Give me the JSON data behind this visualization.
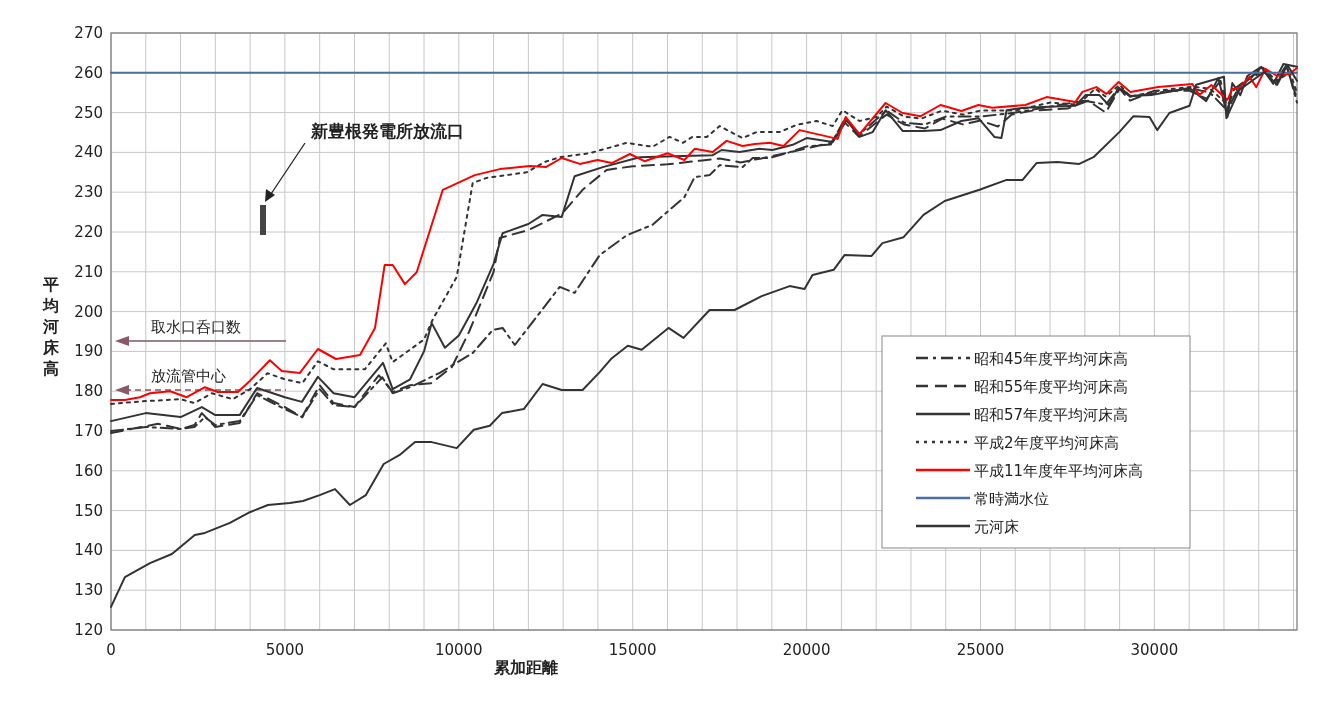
{
  "chart_data": {
    "type": "line",
    "xlabel": "累加距離",
    "ylabel": "平均河床高",
    "xlim": [
      0,
      34100
    ],
    "ylim": [
      120,
      270
    ],
    "xticks": [
      0,
      {
        "value": 1000,
        "label": null
      },
      {
        "value": 2000,
        "label": null
      },
      {
        "value": 3000,
        "label": null
      },
      {
        "value": 4000,
        "label": null
      },
      5000,
      {
        "value": 6000,
        "label": null
      },
      {
        "value": 7000,
        "label": null
      },
      {
        "value": 8000,
        "label": null
      },
      {
        "value": 9000,
        "label": null
      },
      10000,
      {
        "value": 11000,
        "label": null
      },
      {
        "value": 12000,
        "label": null
      },
      {
        "value": 13000,
        "label": null
      },
      {
        "value": 14000,
        "label": null
      },
      15000,
      {
        "value": 16000,
        "label": null
      },
      {
        "value": 17000,
        "label": null
      },
      {
        "value": 18000,
        "label": null
      },
      {
        "value": 19000,
        "label": null
      },
      20000,
      {
        "value": 21000,
        "label": null
      },
      {
        "value": 22000,
        "label": null
      },
      {
        "value": 23000,
        "label": null
      },
      {
        "value": 24000,
        "label": null
      },
      25000,
      {
        "value": 26000,
        "label": null
      },
      {
        "value": 27000,
        "label": null
      },
      {
        "value": 28000,
        "label": null
      },
      {
        "value": 29000,
        "label": null
      },
      30000,
      {
        "value": 31000,
        "label": null
      },
      {
        "value": 32000,
        "label": null
      },
      {
        "value": 33000,
        "label": null
      },
      {
        "value": 34000,
        "label": null
      }
    ],
    "yticks": [
      120,
      130,
      140,
      150,
      160,
      170,
      180,
      190,
      200,
      210,
      220,
      230,
      240,
      250,
      260,
      270
    ],
    "grid": true,
    "legend": "bottom right",
    "marker": "none",
    "series": [
      {
        "name": "昭和45年度平均河床高",
        "color": "#333333",
        "line_style": "dashdot",
        "x": [
          0,
          1000,
          2000,
          2400,
          2700,
          3000,
          3700,
          4200,
          5000,
          5500,
          6000,
          6400,
          7000,
          7800,
          8100,
          8600,
          9450,
          10400,
          10980,
          11260,
          11610,
          11950,
          12900,
          13330,
          14050,
          14830,
          15570,
          16490,
          16780,
          17210,
          17500,
          18160,
          18450,
          18940,
          19500,
          20000,
          20700,
          21100,
          21500,
          22300,
          22800,
          23400,
          24000,
          25000,
          26000,
          27000,
          28000,
          28600,
          29000,
          29300,
          30100,
          31100,
          31600,
          32100,
          32400,
          32800,
          33100,
          33500,
          33800,
          34100
        ],
        "values": [
          170,
          171,
          170.5,
          171,
          173.5,
          171.5,
          172.5,
          179,
          175.5,
          173.5,
          180.5,
          176.5,
          176,
          183.5,
          179.5,
          181,
          184.6,
          189.6,
          195.4,
          195.9,
          191.6,
          195.4,
          206.2,
          204.7,
          214.2,
          219.2,
          221.8,
          228.8,
          233.8,
          234.3,
          236.8,
          236.3,
          238.6,
          238.6,
          240,
          241.5,
          242,
          248.5,
          244.5,
          250.5,
          247.5,
          247,
          249,
          249,
          250,
          251.5,
          253,
          252,
          256.5,
          254,
          255,
          256,
          255,
          250.5,
          256,
          259,
          261.5,
          258,
          262,
          252.5
        ]
      },
      {
        "name": "昭和55年度平均河床高",
        "color": "#333333",
        "line_style": "dashed",
        "x": [
          0,
          1350,
          2000,
          2400,
          2610,
          3000,
          3700,
          4200,
          5000,
          5490,
          6000,
          6400,
          7000,
          7700,
          8100,
          8600,
          9200,
          9800,
          10300,
          11000,
          11180,
          12000,
          12470,
          12990,
          13560,
          14250,
          15000,
          16000,
          17000,
          17500,
          18100,
          18700,
          19500,
          20000,
          20700,
          21100,
          21500,
          22300,
          22800,
          23400,
          23900,
          24500,
          25000,
          25500,
          25900,
          26500,
          27500,
          28100,
          28600,
          29000,
          29300,
          30000,
          31000,
          31500,
          31900,
          32100,
          32300,
          32700,
          33100,
          33500,
          33800,
          34100
        ],
        "values": [
          169.5,
          171.8,
          170.5,
          171.5,
          174.5,
          171,
          172,
          179.5,
          176,
          173.5,
          181.5,
          177,
          176,
          184,
          179.8,
          181.5,
          182,
          186,
          195,
          210,
          218.5,
          220.5,
          222.5,
          224.8,
          230.6,
          235.6,
          236.5,
          237,
          238,
          238.5,
          237.5,
          238.5,
          240,
          241,
          242.4,
          247.5,
          244,
          249.5,
          247,
          246,
          248.5,
          247,
          248,
          246.5,
          249.5,
          250.5,
          251,
          253,
          250,
          256,
          253,
          255.5,
          255.5,
          253.5,
          258,
          251,
          256,
          258.5,
          261,
          257,
          261.5,
          253.5
        ]
      },
      {
        "name": "昭和57年度平均河床高",
        "color": "#333333",
        "line_style": "solid",
        "x": [
          0,
          1000,
          2000,
          2610,
          3000,
          3700,
          4200,
          5000,
          5490,
          5950,
          6400,
          7000,
          7820,
          8100,
          8600,
          9000,
          9220,
          9600,
          10000,
          10500,
          11000,
          11260,
          12000,
          12410,
          12960,
          13330,
          14140,
          15200,
          16440,
          17300,
          17560,
          18070,
          18650,
          19020,
          19600,
          20000,
          20750,
          21150,
          21520,
          21900,
          22270,
          22760,
          23360,
          23850,
          24450,
          24940,
          25400,
          25600,
          25750,
          26240,
          27730,
          28020,
          28420,
          28680,
          28970,
          29310,
          29910,
          31000,
          31490,
          31840,
          32100,
          32240,
          32470,
          32670,
          33070,
          33420,
          33710,
          34100
        ],
        "values": [
          172.5,
          174.5,
          173.5,
          176,
          174,
          174,
          180.8,
          178.5,
          177.3,
          183.6,
          179.5,
          178.5,
          187.1,
          180.5,
          183,
          190,
          197.1,
          190.9,
          194,
          202,
          212,
          219.7,
          222,
          224.3,
          223.8,
          234,
          236.3,
          238.8,
          239.1,
          239.3,
          240.6,
          240.1,
          240.9,
          240.6,
          241.9,
          243.6,
          242.6,
          248.1,
          243.9,
          245.1,
          250.6,
          245.4,
          245.4,
          245.6,
          247.9,
          248.6,
          243.9,
          243.6,
          250.6,
          251.2,
          251.7,
          254.4,
          254.4,
          251.9,
          256.2,
          254.2,
          254.4,
          256.2,
          252.9,
          258.7,
          248.9,
          257.4,
          254.4,
          259.2,
          261.5,
          257.2,
          262.2,
          261.5
        ]
      },
      {
        "name": "平成2年度平均河床高",
        "color": "#333333",
        "line_style": "dotted",
        "x": [
          0,
          1000,
          2000,
          2400,
          2900,
          3500,
          4000,
          4500,
          5000,
          5500,
          5950,
          6400,
          7300,
          7900,
          8100,
          9000,
          9250,
          9940,
          10400,
          10800,
          11950,
          12470,
          12900,
          13760,
          14830,
          15570,
          16060,
          16440,
          16720,
          17130,
          17500,
          17870,
          18160,
          18560,
          19220,
          19710,
          20290,
          20750,
          21030,
          21520,
          22010,
          22300,
          22800,
          23300,
          23900,
          24500,
          25000,
          26000,
          27000,
          27800,
          28300,
          28600,
          29000,
          29300,
          30100,
          31100,
          31600,
          32100,
          32700,
          33200,
          33500,
          33900,
          34100
        ],
        "values": [
          176.8,
          177.5,
          178,
          177,
          179.5,
          178,
          180.5,
          184.5,
          183,
          182,
          187.5,
          185.5,
          185.5,
          192,
          187.3,
          193,
          198,
          208.7,
          232.3,
          233.6,
          235,
          237.6,
          238.8,
          239.8,
          242.4,
          241.4,
          243.9,
          242.4,
          243.9,
          243.9,
          246.6,
          244.9,
          243.6,
          245.1,
          245.1,
          246.9,
          247.9,
          246.6,
          250.6,
          247.9,
          248.9,
          251.5,
          249,
          248.5,
          250.5,
          249.5,
          250.5,
          250.5,
          252.5,
          252,
          256,
          254,
          257,
          254,
          255.5,
          256.5,
          256,
          252,
          258.5,
          260.5,
          258,
          260,
          255
        ]
      },
      {
        "name": "平成11年度年平均河床高",
        "color": "#ff0000",
        "line_style": "solid",
        "x": [
          0,
          400,
          830,
          1120,
          1700,
          2180,
          2700,
          3070,
          3650,
          3990,
          4570,
          4910,
          5430,
          5950,
          6470,
          7160,
          7590,
          7870,
          8100,
          8450,
          8790,
          9540,
          10460,
          11180,
          12040,
          12500,
          12960,
          13480,
          13990,
          14400,
          14920,
          15340,
          16000,
          16490,
          16780,
          17300,
          17700,
          18160,
          18510,
          18940,
          19340,
          19800,
          20890,
          21120,
          21520,
          22270,
          22760,
          23280,
          23850,
          24450,
          24940,
          25340,
          26290,
          26900,
          27730,
          27930,
          28330,
          28620,
          28970,
          29310,
          30110,
          31090,
          31290,
          31640,
          32100,
          32240,
          32440,
          32730,
          32930,
          33190,
          33530,
          33880,
          34100
        ],
        "values": [
          177.8,
          177.8,
          178.5,
          179.5,
          180,
          178.5,
          181,
          179.8,
          179.8,
          182.6,
          187.8,
          185.1,
          184.6,
          190.6,
          188.1,
          189.1,
          195.9,
          211.7,
          211.7,
          206.9,
          209.9,
          230.6,
          234.3,
          235.8,
          236.6,
          236.3,
          238.6,
          237.1,
          238.1,
          237.3,
          239.6,
          237.8,
          239.8,
          238.1,
          240.9,
          240.1,
          242.9,
          241.6,
          242.1,
          242.4,
          241.6,
          245.6,
          243.4,
          248.9,
          244.6,
          252.4,
          249.9,
          249.1,
          251.9,
          250.4,
          251.9,
          251.2,
          251.9,
          253.9,
          252.7,
          255.2,
          256.4,
          254.7,
          257.7,
          255.2,
          256.4,
          257.2,
          254.4,
          256.9,
          253.2,
          255.9,
          256.2,
          259,
          256.4,
          261,
          259.2,
          259.7,
          261.2
        ]
      },
      {
        "name": "常時満水位",
        "color": "#4a6fa5",
        "line_style": "solid",
        "x": [
          0,
          34100
        ],
        "values": [
          260,
          260
        ]
      },
      {
        "name": "元河床",
        "color": "#333333",
        "line_style": "solid",
        "x": [
          0,
          400,
          1120,
          1750,
          2410,
          2700,
          3420,
          3990,
          4510,
          5140,
          5520,
          6000,
          6440,
          6870,
          7330,
          7840,
          8300,
          8740,
          9220,
          9940,
          10430,
          10890,
          11240,
          11870,
          12410,
          12960,
          13560,
          14050,
          14400,
          14860,
          15260,
          16030,
          16460,
          17210,
          17930,
          18710,
          19510,
          19940,
          20170,
          20780,
          21090,
          21870,
          22180,
          22790,
          23360,
          23970,
          24970,
          25750,
          26210,
          26610,
          27210,
          27840,
          28250,
          28990,
          29400,
          29860,
          30080,
          30430,
          31010,
          31200,
          32000,
          32070,
          32440,
          33160,
          33530,
          33820,
          34100
        ],
        "values": [
          125.8,
          133.3,
          136.8,
          139.1,
          143.9,
          144.4,
          146.9,
          149.6,
          151.4,
          151.9,
          152.4,
          153.9,
          155.4,
          151.4,
          153.9,
          161.7,
          164,
          167.2,
          167.2,
          165.7,
          170.3,
          171.3,
          174.5,
          175.5,
          181.8,
          180.3,
          180.3,
          184.8,
          188.3,
          191.4,
          190.4,
          195.9,
          193.4,
          200.4,
          200.4,
          203.9,
          206.4,
          205.7,
          209.2,
          210.5,
          214.2,
          214,
          217.2,
          218.7,
          224.3,
          227.8,
          230.6,
          233.1,
          233.1,
          237.3,
          237.6,
          237.1,
          238.8,
          245.1,
          249.1,
          248.9,
          245.6,
          249.9,
          251.7,
          257,
          259,
          248.6,
          255.7,
          260.2,
          257,
          262,
          258
        ]
      }
    ],
    "annotations": [
      "新豊根発電所放流口",
      "取水口呑口数",
      "放流管中心"
    ]
  }
}
